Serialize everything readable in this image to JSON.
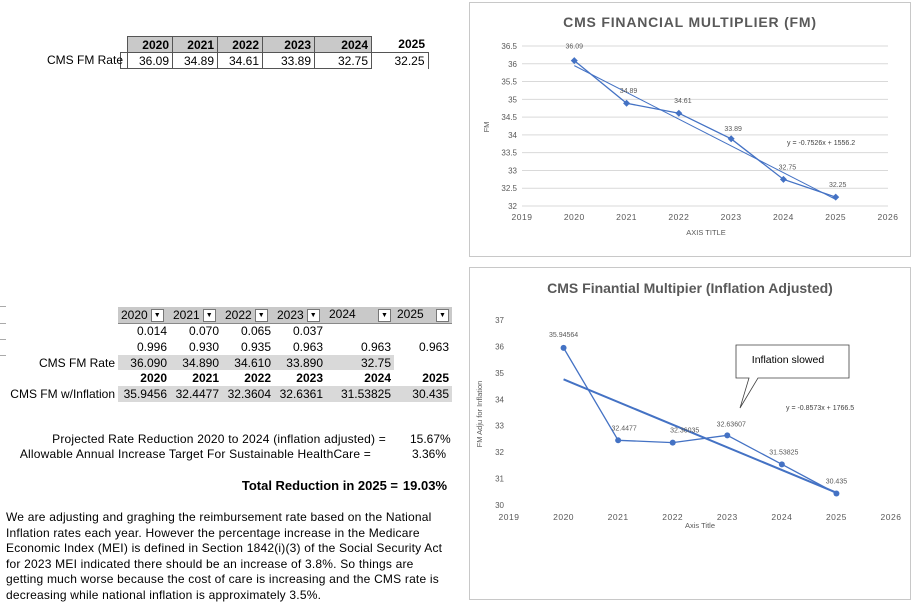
{
  "fm_table": {
    "row_label": "CMS FM Rate",
    "years": [
      "2020",
      "2021",
      "2022",
      "2023",
      "2024",
      "2025"
    ],
    "values": [
      "36.09",
      "34.89",
      "34.61",
      "33.89",
      "32.75",
      "32.25"
    ]
  },
  "inflation_table": {
    "header": [
      "2020",
      "2021",
      "2022",
      "2023",
      "2024",
      "2025"
    ],
    "row_inflation": [
      "0.014",
      "0.070",
      "0.065",
      "0.037",
      "",
      ""
    ],
    "row_factor": [
      "0.996",
      "0.930",
      "0.935",
      "0.963",
      "0.963",
      "0.963"
    ],
    "fm_label": "CMS FM Rate",
    "row_fm": [
      "36.090",
      "34.890",
      "34.610",
      "33.890",
      "32.75",
      ""
    ],
    "row_years": [
      "2020",
      "2021",
      "2022",
      "2023",
      "2024",
      "2025"
    ],
    "fm_infl_label": "CMS FM w/Inflation",
    "row_fm_infl": [
      "35.9456",
      "32.4477",
      "32.3604",
      "32.6361",
      "31.53825",
      "30.435"
    ]
  },
  "summary": {
    "projected_label": "Projected Rate Reduction 2020 to 2024 (inflation adjusted) =",
    "projected_value": "15.67%",
    "allowable_label": "Allowable Annual Increase Target For Sustainable HealthCare =",
    "allowable_value": "3.36%",
    "total_label": "Total Reduction in 2025 =",
    "total_value": "19.03%"
  },
  "notes": "We are adjusting and graghing the reimbursement rate based on the National Inflation rates each year.  However the percentage increase in the Medicare Economic Index (MEI) is defined in Section 1842(i)(3) of the Social Security Act for 2023 MEI indicated there should be an increase of 3.8%. So things are getting much worse because the cost of care is increasing and the CMS rate is decreasing while national inflation is approximately 3.5%.",
  "chart_data": [
    {
      "type": "line",
      "title": "CMS FINANCIAL MULTIPLIER (FM)",
      "xlabel": "AXIS TITLE",
      "ylabel": "FM",
      "x": [
        2020,
        2021,
        2022,
        2023,
        2024,
        2025
      ],
      "values": [
        36.09,
        34.89,
        34.61,
        33.89,
        32.75,
        32.25
      ],
      "data_labels": [
        "36.09",
        "34.89",
        "34.61",
        "33.89",
        "32.75",
        "32.25"
      ],
      "xlim": [
        2019,
        2026
      ],
      "ylim": [
        32,
        36.5
      ],
      "x_ticks": [
        "2019",
        "2020",
        "2021",
        "2022",
        "2023",
        "2024",
        "2025",
        "2026"
      ],
      "y_ticks": [
        "32",
        "32.5",
        "33",
        "33.5",
        "34",
        "34.5",
        "35",
        "35.5",
        "36",
        "36.5"
      ],
      "trendline": {
        "slope": -0.7526,
        "intercept": 1556.2,
        "label": "y = -0.7526x + 1556.2"
      },
      "grid": true,
      "color": "#4472c4"
    },
    {
      "type": "line",
      "title": "CMS Finantial Multipier (Inflation Adjusted)",
      "xlabel": "Axis Title",
      "ylabel": "FM Adju for Inflation",
      "x": [
        2020,
        2021,
        2022,
        2023,
        2024,
        2025
      ],
      "values": [
        35.94564,
        32.4477,
        32.36035,
        32.63607,
        31.53825,
        30.435
      ],
      "data_labels": [
        "35.94564",
        "32.4477",
        "32.36035",
        "32.63607",
        "31.53825",
        "30.435"
      ],
      "xlim": [
        2019,
        2026
      ],
      "ylim": [
        30,
        37
      ],
      "x_ticks": [
        "2019",
        "2020",
        "2021",
        "2022",
        "2023",
        "2024",
        "2025",
        "2026"
      ],
      "y_ticks": [
        "30",
        "31",
        "32",
        "33",
        "34",
        "35",
        "36",
        "37"
      ],
      "trendline": {
        "slope": -0.8573,
        "intercept": 1766.5,
        "label": "y = -0.8573x + 1766.5"
      },
      "callout": "Inflation slowed",
      "grid": false,
      "color": "#4472c4"
    }
  ]
}
